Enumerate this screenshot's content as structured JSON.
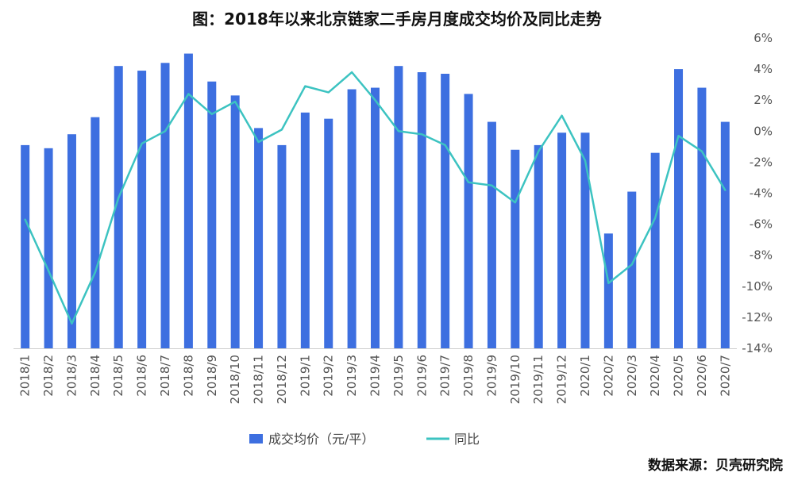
{
  "chart_data": {
    "type": "bar",
    "title": "图：2018年以来北京链家二手房月度成交均价及同比走势",
    "source": "数据来源：贝壳研究院",
    "categories": [
      "2018/1",
      "2018/2",
      "2018/3",
      "2018/4",
      "2018/5",
      "2018/6",
      "2018/7",
      "2018/8",
      "2018/9",
      "2018/10",
      "2018/11",
      "2018/12",
      "2019/1",
      "2019/2",
      "2019/3",
      "2019/4",
      "2019/5",
      "2019/6",
      "2019/7",
      "2019/8",
      "2019/9",
      "2019/10",
      "2019/11",
      "2019/12",
      "2020/1",
      "2020/2",
      "2020/3",
      "2020/4",
      "2020/5",
      "2020/6",
      "2020/7"
    ],
    "legend_position": "bottom",
    "grid": false,
    "y_right": {
      "min": -14,
      "max": 6,
      "ticks": [
        "6%",
        "4%",
        "2%",
        "0%",
        "-2%",
        "-4%",
        "-6%",
        "-8%",
        "-10%",
        "-12%",
        "-14%"
      ]
    },
    "series": [
      {
        "name": "成交均价（元/平）",
        "type": "bar",
        "color": "#3d6fe0",
        "values": [
          -0.9,
          -1.1,
          -0.2,
          0.9,
          4.2,
          3.9,
          4.4,
          5.0,
          3.2,
          2.3,
          0.2,
          -0.9,
          1.2,
          0.8,
          2.7,
          2.8,
          4.2,
          3.8,
          3.7,
          2.4,
          0.6,
          -1.2,
          -0.9,
          -0.1,
          -0.1,
          -6.6,
          -3.9,
          -1.4,
          4.0,
          2.8,
          0.6
        ]
      },
      {
        "name": "同比",
        "type": "line",
        "color": "#3cc3c1",
        "values": [
          -5.7,
          -9.0,
          -12.4,
          -9.1,
          -4.3,
          -0.8,
          0.0,
          2.4,
          1.1,
          1.9,
          -0.7,
          0.1,
          2.9,
          2.5,
          3.8,
          2.0,
          0.0,
          -0.2,
          -0.9,
          -3.3,
          -3.5,
          -4.6,
          -1.3,
          1.0,
          -1.9,
          -9.8,
          -8.6,
          -5.6,
          -0.3,
          -1.3,
          -3.8
        ]
      }
    ]
  }
}
